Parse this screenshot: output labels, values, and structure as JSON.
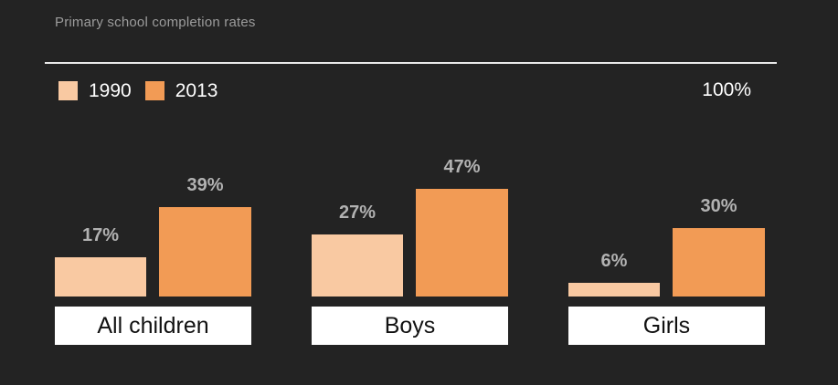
{
  "title": "Primary school completion rates",
  "axis_max_label": "100%",
  "value_suffix": "%",
  "colors": {
    "background": "#232323",
    "series_1990": "#f9c9a2",
    "series_2013": "#f29b55",
    "title_text": "#9c9c9c",
    "value_label_text": "#b2b2b2",
    "legend_text": "#ffffff",
    "divider_line": "#e9e9e9",
    "category_box_bg": "#ffffff",
    "category_box_text": "#111111"
  },
  "legend": [
    {
      "label": "1990",
      "color": "#f9c9a2"
    },
    {
      "label": "2013",
      "color": "#f29b55"
    }
  ],
  "chart_data": {
    "type": "bar",
    "title": "Primary school completion rates",
    "categories": [
      "All children",
      "Boys",
      "Girls"
    ],
    "series": [
      {
        "name": "1990",
        "color": "#f9c9a2",
        "values": [
          17,
          27,
          6
        ]
      },
      {
        "name": "2013",
        "color": "#f29b55",
        "values": [
          39,
          47,
          30
        ]
      }
    ],
    "data_labels": [
      [
        "17%",
        "27%",
        "6%"
      ],
      [
        "39%",
        "47%",
        "30%"
      ]
    ],
    "xlabel": "",
    "ylabel": "",
    "ylim": [
      0,
      100
    ],
    "grid": false,
    "legend_position": "top-left",
    "axis_max_annotation": "100%"
  }
}
